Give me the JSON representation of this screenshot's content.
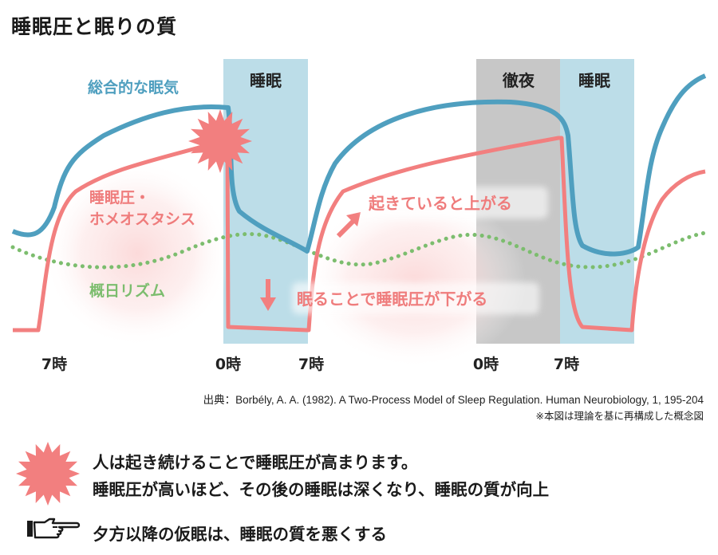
{
  "title": "睡眠圧と眠りの質",
  "bands": {
    "sleep1": "睡眠",
    "allnight": "徹夜",
    "sleep2": "睡眠"
  },
  "curve_labels": {
    "total": "総合的な眠気",
    "pressure_line1": "睡眠圧・",
    "pressure_line2": "ホメオスタシス",
    "circadian": "概日リズム"
  },
  "annotations": {
    "awake": "起きていると上がる",
    "sleeping": "眠ることで睡眠圧が下がる"
  },
  "time_labels": [
    "7時",
    "0時",
    "7時",
    "0時",
    "7時"
  ],
  "source": {
    "line1": "出典：Borbély, A. A. (1982). A Two-Process Model of Sleep Regulation. Human Neurobiology, 1, 195-204",
    "line2": "※本図は理論を基に再構成した概念図"
  },
  "bullets": {
    "line1": "人は起き続けることで睡眠圧が高まります。",
    "line2": "睡眠圧が高いほど、その後の睡眠は深くなり、睡眠の質が向上",
    "line3": "夕方以降の仮眠は、睡眠の質を悪くする"
  },
  "icons": [
    "starburst-icon",
    "pointing-hand-icon"
  ],
  "colors": {
    "total": "#4f9fbf",
    "pressure": "#f27f7f",
    "circadian": "#7cbd6e",
    "sleep_band": "#bcdde8",
    "allnight_band": "#c7c7c7",
    "burst": "#f27f7f",
    "label_pink": "#ef7c7c"
  }
}
